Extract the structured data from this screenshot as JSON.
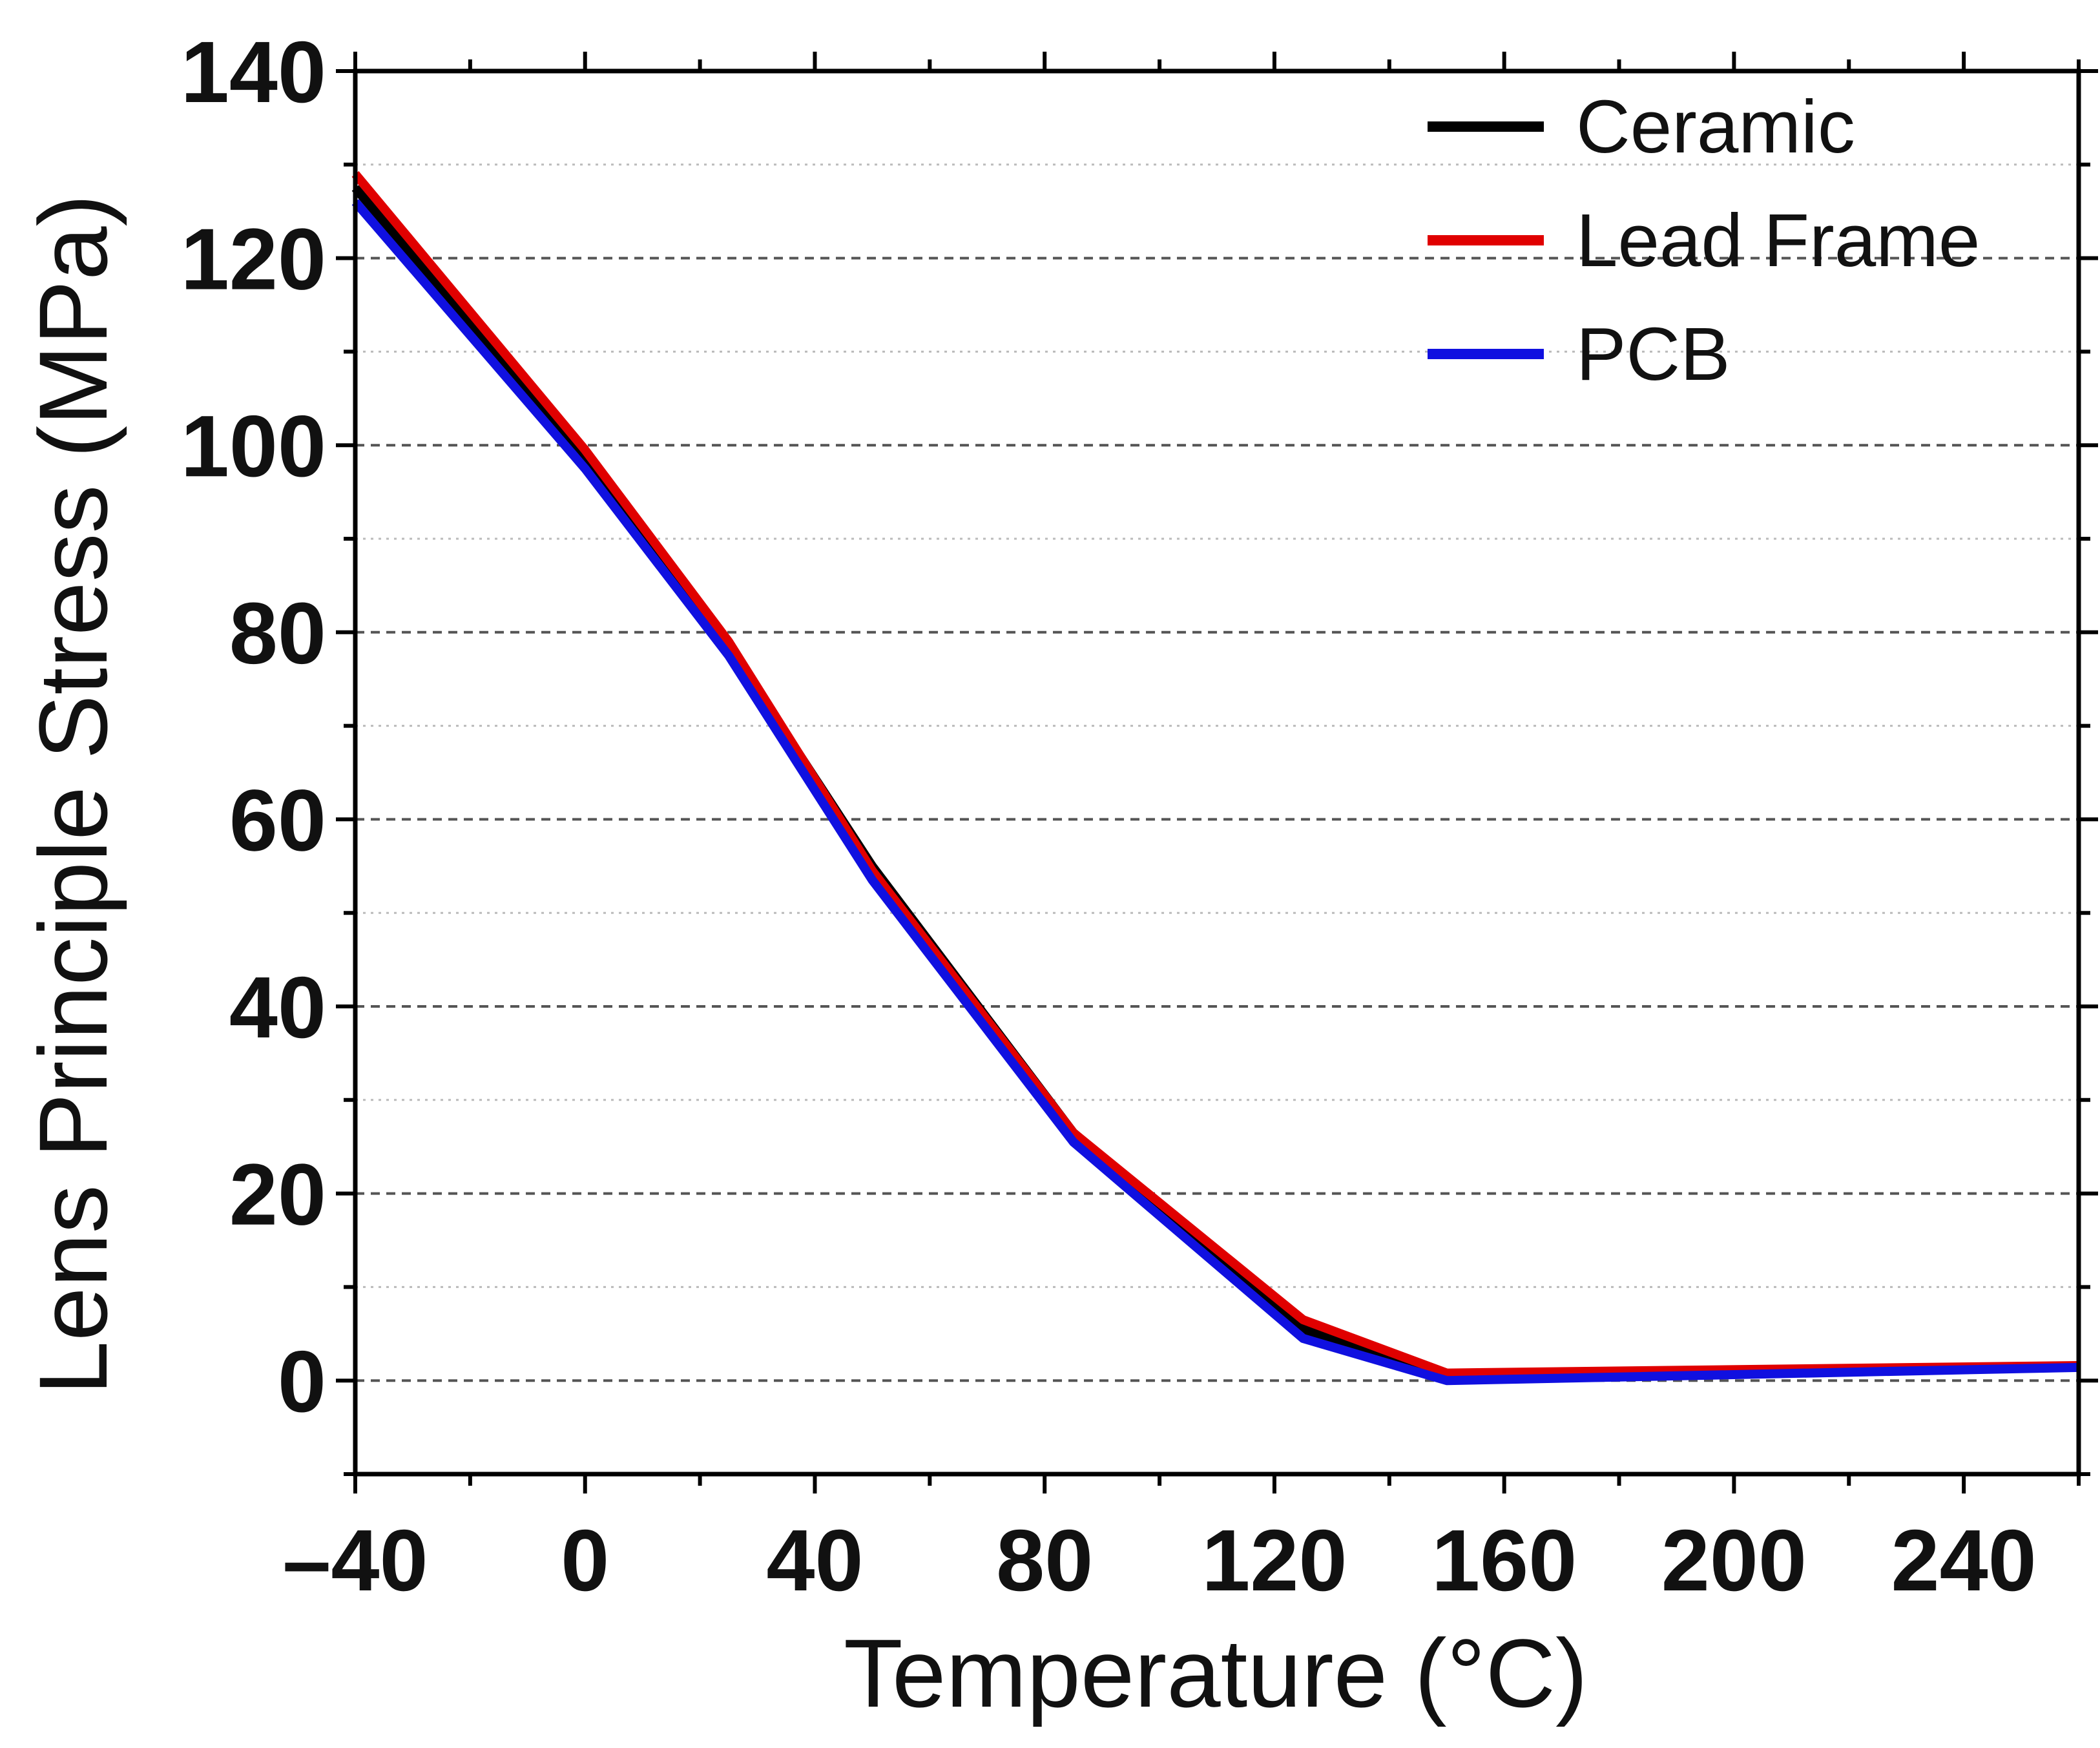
{
  "chart_data": {
    "type": "line",
    "title": "",
    "xlabel": "Temperature (°C)",
    "ylabel": "Lens Principle Stress (MPa)",
    "xlim": [
      -40,
      260
    ],
    "ylim": [
      -10,
      140
    ],
    "xticks": [
      -40,
      0,
      40,
      80,
      120,
      160,
      200,
      240
    ],
    "xtick_labels": [
      "–40",
      "0",
      "40",
      "80",
      "120",
      "160",
      "200",
      "240"
    ],
    "yticks": [
      0,
      20,
      40,
      60,
      80,
      100,
      120,
      140
    ],
    "ytick_labels": [
      "0",
      "20",
      "40",
      "60",
      "80",
      "100",
      "120",
      "140"
    ],
    "grid": "horizontal dashed",
    "legend_position": "top-right",
    "series": [
      {
        "name": "Ceramic",
        "color": "#000000",
        "x": [
          -40,
          0,
          25,
          50,
          85,
          125,
          150,
          260
        ],
        "y": [
          127.5,
          98.5,
          78.5,
          55,
          26.5,
          5.5,
          0.5,
          1.5
        ]
      },
      {
        "name": "Lead Frame",
        "color": "#e00000",
        "x": [
          -40,
          0,
          25,
          50,
          85,
          125,
          150,
          260
        ],
        "y": [
          129,
          99.5,
          79,
          54.5,
          26.5,
          6.5,
          0.8,
          1.6
        ]
      },
      {
        "name": "PCB",
        "color": "#1010e0",
        "x": [
          -40,
          0,
          25,
          50,
          85,
          125,
          150,
          260
        ],
        "y": [
          126,
          97.5,
          77.5,
          53.5,
          25.5,
          4.5,
          0,
          1.4
        ]
      }
    ]
  }
}
